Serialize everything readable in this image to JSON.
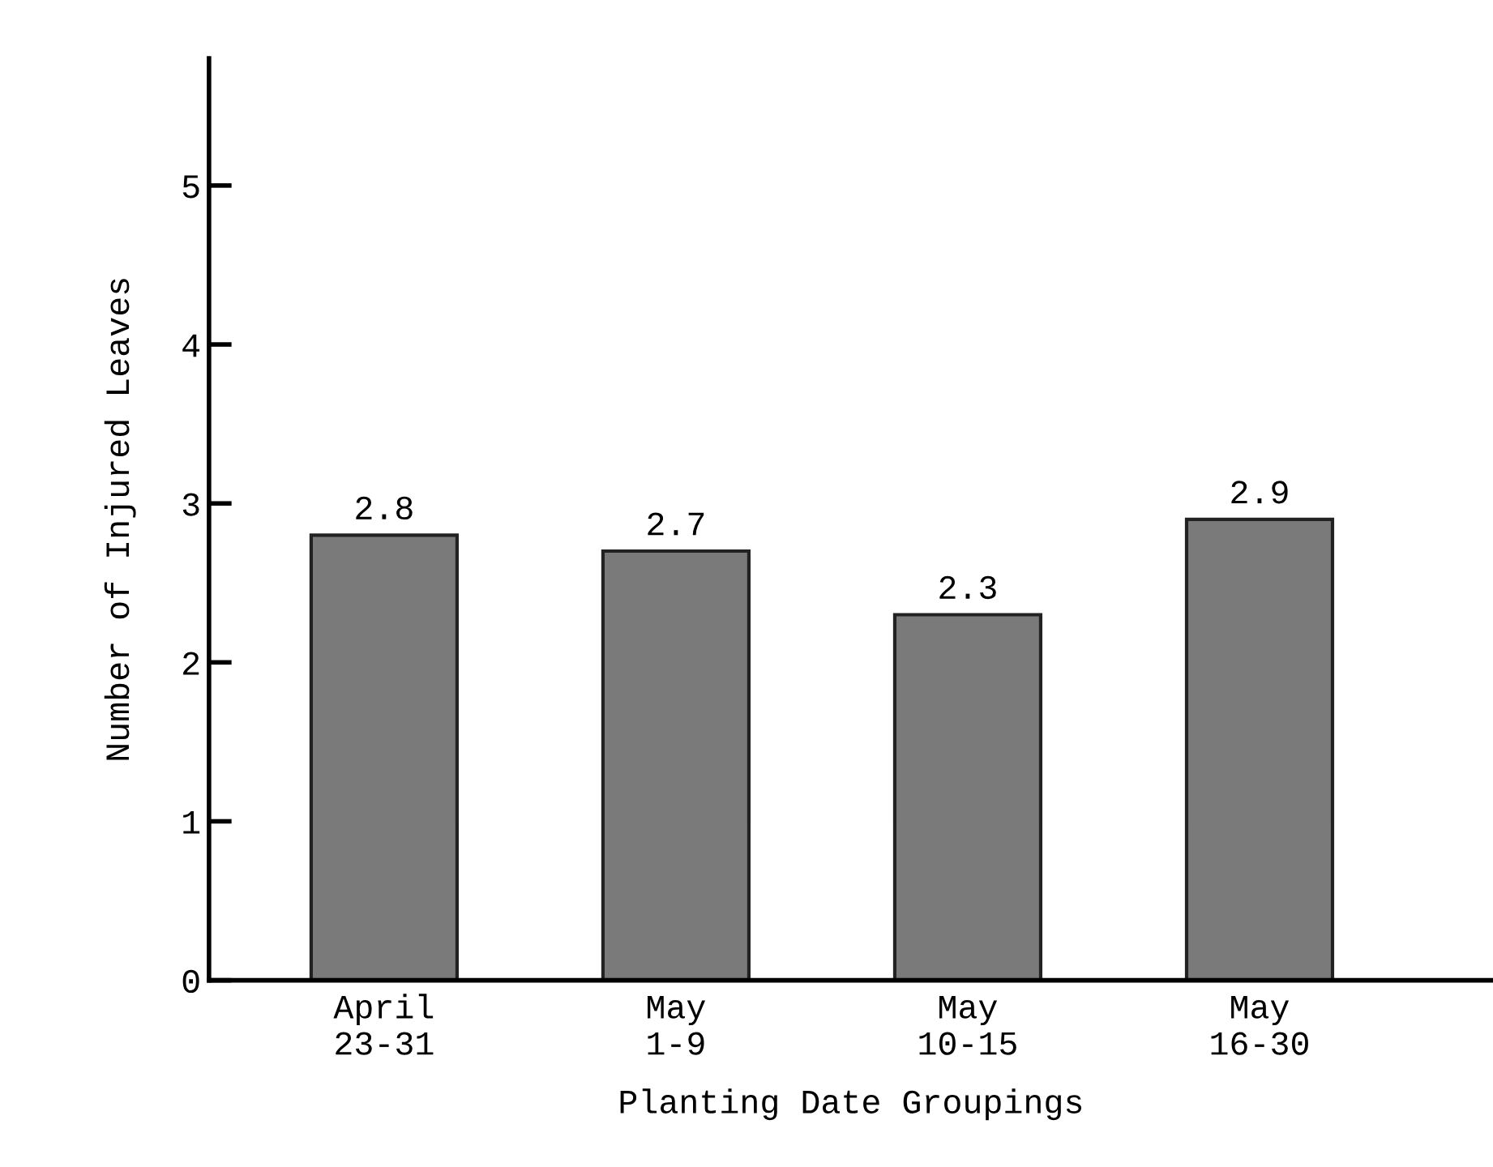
{
  "chart_data": {
    "type": "bar",
    "xlabel": "Planting Date Groupings",
    "ylabel": "Number of Injured Leaves",
    "categories": [
      "April\n23-31",
      "May\n1-9",
      "May\n10-15",
      "May\n16-30"
    ],
    "values": [
      2.8,
      2.7,
      2.3,
      2.9
    ],
    "color": "#7a7a7a",
    "ylim": [
      0,
      5.8
    ],
    "yticks": [
      0,
      1,
      2,
      3,
      4,
      5
    ],
    "data_labels": true,
    "grid": false,
    "legend": false
  }
}
